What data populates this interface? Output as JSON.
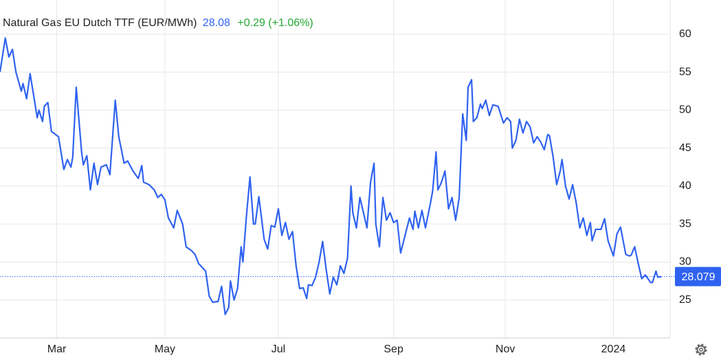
{
  "chart_data": {
    "type": "line",
    "title": "Natural Gas EU Dutch TTF (EUR/MWh)",
    "price": "28.08",
    "change": "+0.29 (+1.06%)",
    "color": "#2f62f0",
    "grid": true,
    "xlim": [
      0,
      378
    ],
    "ylim": [
      20,
      64.5
    ],
    "yticks": [
      25,
      30,
      35,
      40,
      45,
      50,
      55,
      60
    ],
    "xticks": [
      {
        "value": 32,
        "label": "Mar"
      },
      {
        "value": 93,
        "label": "May"
      },
      {
        "value": 157,
        "label": "Jul"
      },
      {
        "value": 222,
        "label": "Sep"
      },
      {
        "value": 285,
        "label": "Nov"
      },
      {
        "value": 346,
        "label": "2024"
      }
    ],
    "x": [
      0,
      3,
      5,
      7,
      9,
      12,
      13,
      15,
      17,
      21,
      22,
      24,
      25,
      27,
      29,
      33,
      36,
      38,
      40,
      41,
      43,
      46,
      47,
      49,
      51,
      53,
      55,
      57,
      60,
      62,
      65,
      67,
      70,
      72,
      75,
      78,
      80,
      81,
      84,
      87,
      89,
      91,
      93,
      95,
      98,
      100,
      103,
      105,
      108,
      110,
      112,
      116,
      118,
      120,
      123,
      125,
      127,
      129,
      130,
      132,
      134,
      136,
      137,
      139,
      141,
      143,
      144,
      146,
      149,
      151,
      153,
      155,
      157,
      159,
      161,
      163,
      165,
      167,
      169,
      171,
      173,
      174,
      176,
      178,
      180,
      182,
      184,
      186,
      188,
      190,
      192,
      194,
      196,
      198,
      199,
      201,
      203,
      205,
      207,
      209,
      211,
      212,
      214,
      216,
      218,
      220,
      222,
      224,
      226,
      229,
      231,
      233,
      234,
      236,
      238,
      240,
      243,
      244,
      246,
      247,
      249,
      251,
      253,
      255,
      257,
      259,
      261,
      263,
      264,
      266,
      267,
      269,
      271,
      272,
      274,
      276,
      278,
      281,
      284,
      286,
      288,
      289,
      291,
      293,
      295,
      297,
      299,
      301,
      303,
      305,
      307,
      309,
      310,
      312,
      314,
      316,
      317,
      319,
      321,
      323,
      325,
      327,
      329,
      331,
      333,
      334,
      336,
      339,
      341,
      343,
      346,
      348,
      350,
      353,
      355,
      356,
      358,
      360,
      362,
      364,
      367,
      368,
      370,
      371,
      373
    ],
    "values": [
      55,
      59.5,
      57,
      58,
      55,
      52.5,
      53.5,
      51.5,
      54.8,
      49,
      50,
      48.5,
      50.5,
      51,
      47.2,
      46.5,
      42.2,
      43.5,
      42.5,
      43.8,
      53,
      44.5,
      42.8,
      44,
      39.5,
      43,
      40.2,
      42.5,
      42.8,
      41.5,
      51.3,
      46.5,
      43,
      43.3,
      42,
      41,
      42.7,
      40.5,
      40.2,
      39.5,
      38.5,
      38.9,
      38.2,
      35.8,
      34.5,
      36.8,
      35,
      32,
      31.5,
      31,
      29.8,
      28.8,
      25.5,
      24.7,
      24.8,
      26.8,
      23.1,
      24,
      27.5,
      25,
      26.5,
      32,
      30,
      36,
      41.2,
      35,
      35,
      38.6,
      33,
      31.7,
      34.8,
      34.6,
      37,
      33.5,
      35.2,
      33,
      34,
      29.5,
      26.5,
      26.6,
      25.2,
      27,
      26.9,
      28,
      30,
      32.7,
      29,
      25.8,
      28,
      27,
      29.5,
      28.5,
      30.5,
      40,
      36.5,
      34.5,
      38.5,
      36.5,
      34.5,
      40.5,
      43,
      35,
      32,
      38.5,
      35.5,
      36.5,
      35.2,
      35.5,
      31.2,
      34,
      35.8,
      34.3,
      36.7,
      34.5,
      36.8,
      34.5,
      38,
      39.3,
      44.5,
      39.5,
      40.5,
      42,
      37,
      38.5,
      35.5,
      38.5,
      49.5,
      46,
      53,
      54,
      48.5,
      49,
      50.8,
      50.2,
      51.3,
      49.3,
      50.7,
      50.5,
      48.3,
      49,
      48.5,
      45,
      46,
      48.8,
      47,
      48.5,
      47.8,
      45.7,
      46.5,
      45.8,
      44.8,
      46.8,
      46.6,
      43.8,
      40.2,
      42,
      43.5,
      40,
      38.3,
      40.2,
      37.8,
      34.5,
      35.8,
      33.5,
      35.2,
      32.8,
      34.3,
      34.3,
      35.7,
      32.8,
      30.8,
      33.7,
      34.6,
      31,
      30.8,
      30.9,
      32,
      29.8,
      27.8,
      28.3,
      27.3,
      27.3,
      28.8,
      28,
      28.079
    ]
  }
}
